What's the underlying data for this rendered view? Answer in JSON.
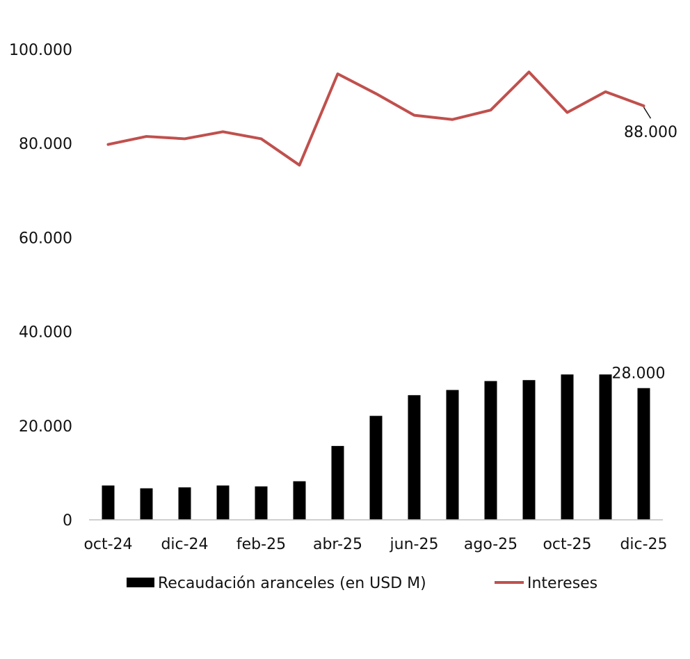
{
  "chart_data": {
    "type": "bar+line",
    "title": "",
    "xlabel": "",
    "ylabel": "",
    "ylim": [
      0,
      100000
    ],
    "y_ticks": [
      0,
      20000,
      40000,
      60000,
      80000,
      100000
    ],
    "y_tick_labels": [
      "0",
      "20.000",
      "40.000",
      "60.000",
      "80.000",
      "100.000"
    ],
    "categories": [
      "oct-24",
      "nov-24",
      "dic-24",
      "ene-25",
      "feb-25",
      "mar-25",
      "abr-25",
      "may-25",
      "jun-25",
      "jul-25",
      "ago-25",
      "sep-25",
      "oct-25",
      "nov-25",
      "dic-25"
    ],
    "x_tick_labels": [
      "oct-24",
      "",
      "dic-24",
      "",
      "feb-25",
      "",
      "abr-25",
      "",
      "jun-25",
      "",
      "ago-25",
      "",
      "oct-25",
      "",
      "dic-25"
    ],
    "grid": false,
    "legend_position": "bottom",
    "series": [
      {
        "name": "Recaudación aranceles (en USD M)",
        "type": "bar",
        "color": "#000000",
        "values": [
          7300,
          6700,
          6900,
          7300,
          7100,
          8200,
          15700,
          22100,
          26500,
          27600,
          29500,
          29700,
          30900,
          30900,
          28000
        ]
      },
      {
        "name": "Intereses",
        "type": "line",
        "color": "#c0504d",
        "values": [
          79800,
          81500,
          81000,
          82500,
          81000,
          75400,
          94800,
          90600,
          86000,
          85100,
          87100,
          95200,
          86600,
          91000,
          88000
        ]
      }
    ],
    "annotations": [
      {
        "series": 1,
        "index": 14,
        "text": "88.000"
      },
      {
        "series": 0,
        "index": 14,
        "text": "28.000"
      }
    ]
  }
}
